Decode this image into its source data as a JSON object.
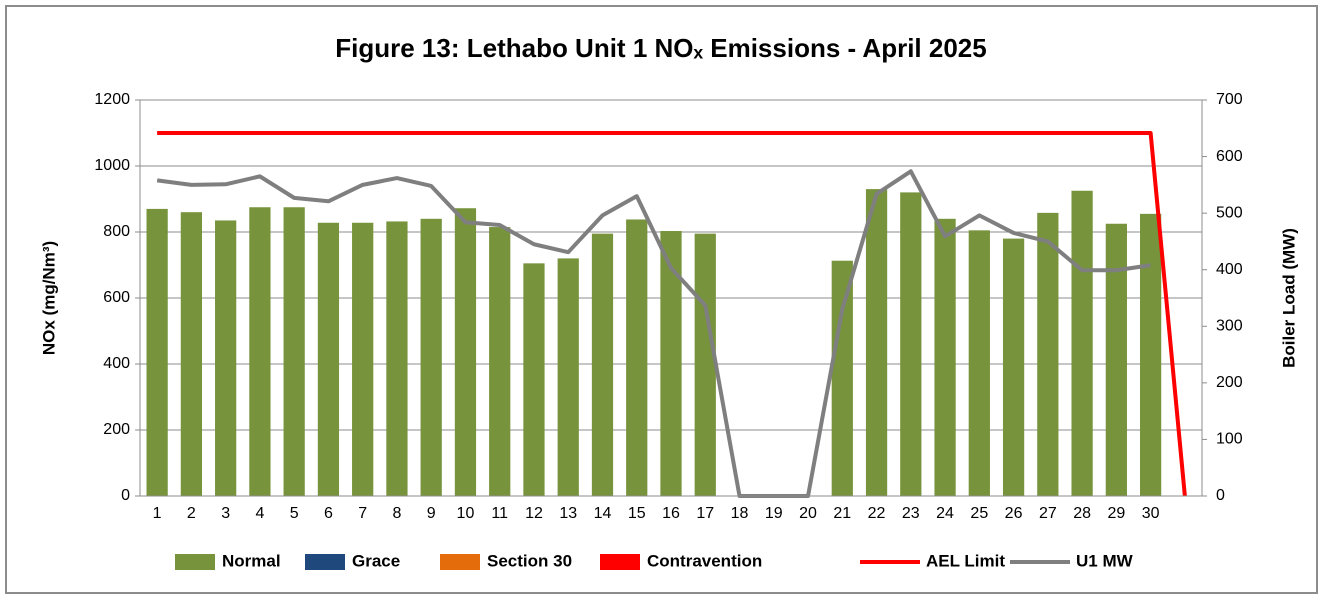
{
  "chart_data": {
    "type": "bar",
    "title": "Figure 13: Lethabo Unit 1 NOₓ Emissions - April 2025",
    "y_label": "NOx (mg/Nm³)",
    "y2_label": "Boiler Load (MW)",
    "categories": [
      "1",
      "2",
      "3",
      "4",
      "5",
      "6",
      "7",
      "8",
      "9",
      "10",
      "11",
      "12",
      "13",
      "14",
      "15",
      "16",
      "17",
      "18",
      "19",
      "20",
      "21",
      "22",
      "23",
      "24",
      "25",
      "26",
      "27",
      "28",
      "29",
      "30",
      null
    ],
    "series": [
      {
        "name": "Normal",
        "type": "bar",
        "color": "#77933c",
        "values": [
          870,
          860,
          835,
          875,
          875,
          828,
          828,
          832,
          840,
          872,
          815,
          705,
          720,
          795,
          838,
          803,
          795,
          null,
          null,
          null,
          713,
          930,
          920,
          840,
          805,
          780,
          858,
          925,
          825,
          855,
          null
        ]
      },
      {
        "name": "Grace",
        "type": "bar",
        "color": "#1f497d",
        "values": [
          null,
          null,
          null,
          null,
          null,
          null,
          null,
          null,
          null,
          null,
          null,
          null,
          null,
          null,
          null,
          null,
          null,
          null,
          null,
          null,
          null,
          null,
          null,
          null,
          null,
          null,
          null,
          null,
          null,
          null,
          null
        ]
      },
      {
        "name": "Section 30",
        "type": "bar",
        "color": "#e46c0a",
        "values": [
          null,
          null,
          null,
          null,
          null,
          null,
          null,
          null,
          null,
          null,
          null,
          null,
          null,
          null,
          null,
          null,
          null,
          null,
          null,
          null,
          null,
          null,
          null,
          null,
          null,
          null,
          null,
          null,
          null,
          null,
          null
        ]
      },
      {
        "name": "Contravention",
        "type": "bar",
        "color": "#ff0000",
        "values": [
          null,
          null,
          null,
          null,
          null,
          null,
          null,
          null,
          null,
          null,
          null,
          null,
          null,
          null,
          null,
          null,
          null,
          null,
          null,
          null,
          null,
          null,
          null,
          null,
          null,
          null,
          null,
          null,
          null,
          null,
          null
        ]
      },
      {
        "name": "AEL Limit",
        "type": "line",
        "color": "#ff0000",
        "values": [
          1100,
          1100,
          1100,
          1100,
          1100,
          1100,
          1100,
          1100,
          1100,
          1100,
          1100,
          1100,
          1100,
          1100,
          1100,
          1100,
          1100,
          1100,
          1100,
          1100,
          1100,
          1100,
          1100,
          1100,
          1100,
          1100,
          1100,
          1100,
          1100,
          1100,
          0
        ]
      },
      {
        "name": "U1 MW",
        "type": "line",
        "axis": "y2",
        "color": "#7f7f7f",
        "values": [
          558,
          550,
          551,
          565,
          527,
          521,
          550,
          562,
          548,
          484,
          479,
          445,
          431,
          496,
          530,
          403,
          337,
          0,
          0,
          0,
          330,
          534,
          574,
          459,
          496,
          465,
          450,
          399,
          399,
          408,
          null
        ]
      }
    ],
    "ylim": [
      0,
      1200
    ],
    "yticks": [
      0,
      200,
      400,
      600,
      800,
      1000,
      1200
    ],
    "y2lim": [
      0,
      700
    ],
    "y2ticks": [
      0,
      100,
      200,
      300,
      400,
      500,
      600,
      700
    ],
    "grid": true,
    "legend": "bottom"
  }
}
